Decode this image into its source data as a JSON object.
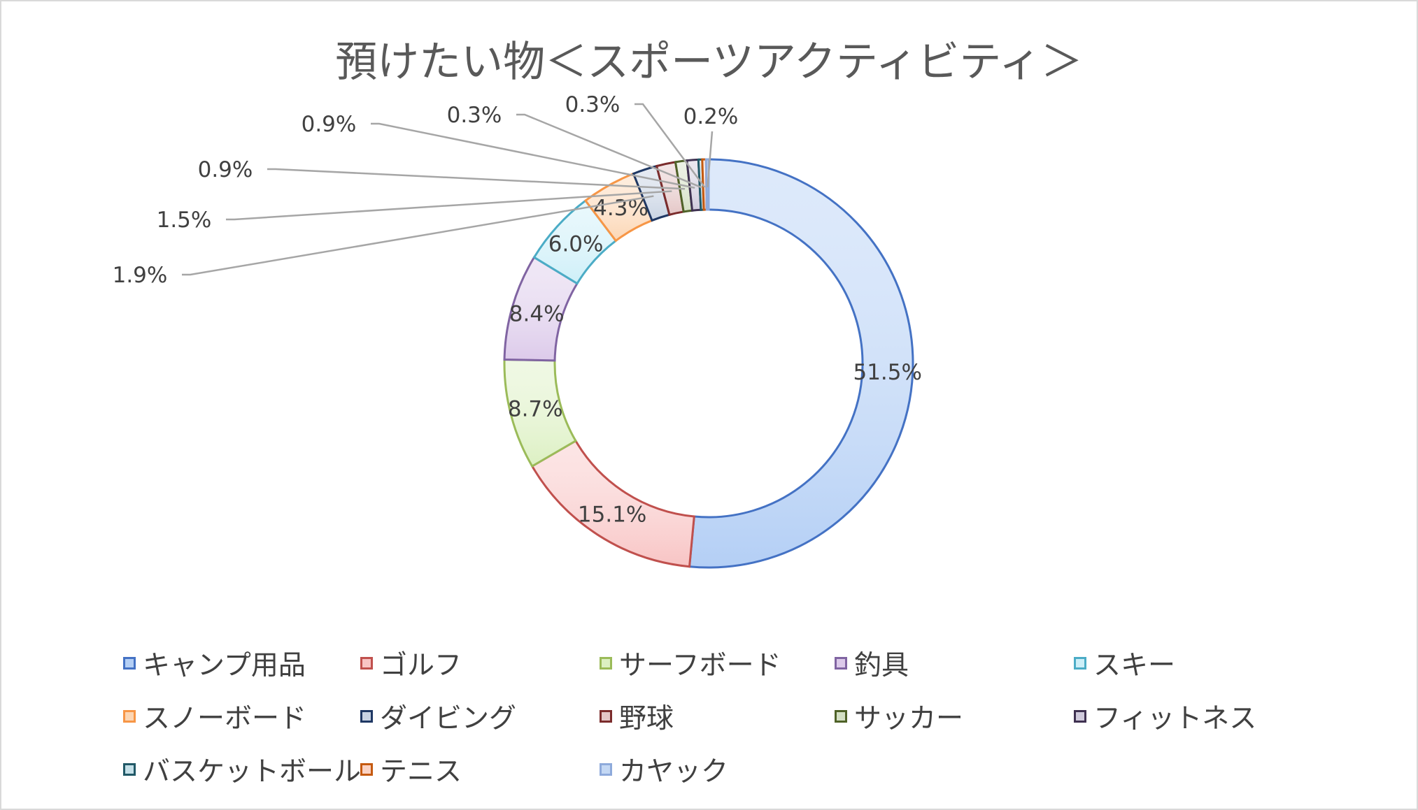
{
  "chart_data": {
    "type": "doughnut",
    "title": "預けたい物＜スポーツアクティビティ＞",
    "categories": [
      "キャンプ用品",
      "ゴルフ",
      "サーフボード",
      "釣具",
      "スキー",
      "スノーボード",
      "ダイビング",
      "野球",
      "サッカー",
      "フィットネス",
      "バスケットボール",
      "テニス",
      "カヤック"
    ],
    "values": [
      51.5,
      15.1,
      8.7,
      8.4,
      6.0,
      4.3,
      1.9,
      1.5,
      0.9,
      0.9,
      0.3,
      0.3,
      0.2
    ],
    "labels": [
      "51.5%",
      "15.1%",
      "8.7%",
      "8.4%",
      "6.0%",
      "4.3%",
      "1.9%",
      "1.5%",
      "0.9%",
      "0.9%",
      "0.3%",
      "0.3%",
      "0.2%"
    ],
    "colors": {
      "fills": [
        "#b4cff5",
        "#f8c4c4",
        "#dcf0c2",
        "#dccaea",
        "#cdeff8",
        "#fcd6b4",
        "#c8d3e3",
        "#e4c6c6",
        "#d4e0c4",
        "#d0cadc",
        "#c4e0e8",
        "#fbd3c4",
        "#c4d8f4"
      ],
      "strokes": [
        "#4472c4",
        "#c0504d",
        "#9bbb59",
        "#8064a2",
        "#4bacc6",
        "#f79646",
        "#1f3864",
        "#7b2c2c",
        "#4f6228",
        "#3f3151",
        "#215967",
        "#c55a11",
        "#8eaadb"
      ],
      "leader": "#a6a6a6",
      "text": "#404040"
    },
    "legend_position": "bottom"
  }
}
